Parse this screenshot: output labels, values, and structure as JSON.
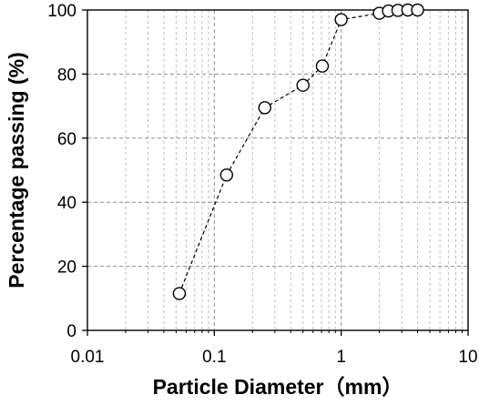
{
  "chart_data": {
    "type": "scatter",
    "title": "",
    "xlabel": "Particle Diameter（mm）",
    "ylabel": "Percentage passing (%)",
    "x_scale": "log",
    "xlim": [
      0.01,
      10
    ],
    "ylim": [
      0,
      100
    ],
    "x_ticks": [
      0.01,
      0.1,
      1,
      10
    ],
    "x_tick_labels": [
      "0.01",
      "0.1",
      "1",
      "10"
    ],
    "y_ticks": [
      0,
      20,
      40,
      60,
      80,
      100
    ],
    "y_tick_labels": [
      "0",
      "20",
      "40",
      "60",
      "80",
      "100"
    ],
    "grid": true,
    "grid_style": "dashed",
    "legend": "none",
    "series": [
      {
        "line_style": "dashed",
        "marker": "open-circle",
        "color": "#000000",
        "points": [
          {
            "x": 0.053,
            "y": 11.5
          },
          {
            "x": 0.125,
            "y": 48.5
          },
          {
            "x": 0.25,
            "y": 69.5
          },
          {
            "x": 0.5,
            "y": 76.5
          },
          {
            "x": 0.71,
            "y": 82.5
          },
          {
            "x": 1.0,
            "y": 97.0
          },
          {
            "x": 2.0,
            "y": 99.0
          },
          {
            "x": 2.36,
            "y": 99.7
          },
          {
            "x": 2.8,
            "y": 99.9
          },
          {
            "x": 3.35,
            "y": 100.0
          },
          {
            "x": 4.0,
            "y": 100.0
          }
        ]
      }
    ]
  }
}
